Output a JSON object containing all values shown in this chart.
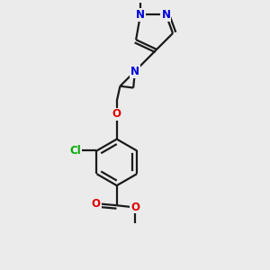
{
  "bg_color": "#ebebeb",
  "bond_color": "#1a1a1a",
  "bond_width": 1.6,
  "dbo": 0.038,
  "atom_colors": {
    "N": "#0000dd",
    "O": "#dd0000",
    "Cl": "#00aa00",
    "C": "#1a1a1a"
  },
  "fs": 8.5,
  "xlim": [
    -0.5,
    1.3
  ],
  "ylim": [
    -1.55,
    1.65
  ]
}
